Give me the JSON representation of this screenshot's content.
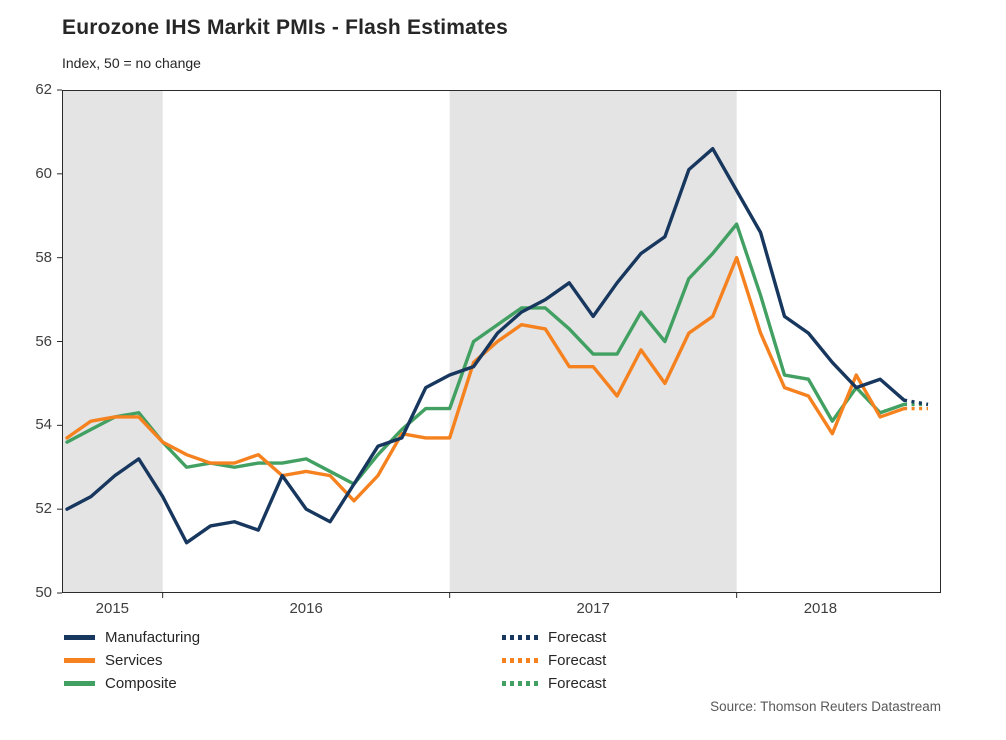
{
  "title": "Eurozone IHS Markit PMIs - Flash Estimates",
  "subtitle": "Index, 50 = no change",
  "source": "Source: Thomson Reuters Datastream",
  "colors": {
    "manufacturing": "#17375e",
    "services": "#f5811f",
    "composite": "#42a062",
    "band": "#e4e4e4",
    "frame": "#2b2b2b",
    "axis_text": "#3f3f3f",
    "title_text": "#262626",
    "source_text": "#595959"
  },
  "legend": {
    "series_labels": [
      "Manufacturing",
      "Services",
      "Composite"
    ],
    "forecast_labels": [
      "Forecast",
      "Forecast",
      "Forecast"
    ]
  },
  "chart_data": {
    "type": "line",
    "title": "Eurozone IHS Markit PMIs - Flash Estimates",
    "subtitle": "Index, 50 = no change",
    "x_frequency": "monthly",
    "x_start_month": "2015-09",
    "x_end_month_actual": "2018-08",
    "x_tick_labels": [
      "2015",
      "2016",
      "2017",
      "2018"
    ],
    "shaded_years": [
      2015,
      2017
    ],
    "grid": false,
    "legend_position": "bottom",
    "y_ticks": [
      50,
      52,
      54,
      56,
      58,
      60,
      62
    ],
    "ylim": [
      50,
      62
    ],
    "series": [
      {
        "name": "Manufacturing",
        "color_key": "manufacturing",
        "values": [
          52.0,
          52.3,
          52.8,
          53.2,
          52.3,
          51.2,
          51.6,
          51.7,
          51.5,
          52.8,
          52.0,
          51.7,
          52.6,
          53.5,
          53.7,
          54.9,
          55.2,
          55.4,
          56.2,
          56.7,
          57.0,
          57.4,
          56.6,
          57.4,
          58.1,
          58.5,
          60.1,
          60.6,
          59.6,
          58.6,
          56.6,
          56.2,
          55.5,
          54.9,
          55.1,
          54.6
        ],
        "forecast": [
          54.5
        ]
      },
      {
        "name": "Services",
        "color_key": "services",
        "values": [
          53.7,
          54.1,
          54.2,
          54.2,
          53.6,
          53.3,
          53.1,
          53.1,
          53.3,
          52.8,
          52.9,
          52.8,
          52.2,
          52.8,
          53.8,
          53.7,
          53.7,
          55.5,
          56.0,
          56.4,
          56.3,
          55.4,
          55.4,
          54.7,
          55.8,
          55.0,
          56.2,
          56.6,
          58.0,
          56.2,
          54.9,
          54.7,
          53.8,
          55.2,
          54.2,
          54.4
        ],
        "forecast": [
          54.4
        ]
      },
      {
        "name": "Composite",
        "color_key": "composite",
        "values": [
          53.6,
          53.9,
          54.2,
          54.3,
          53.6,
          53.0,
          53.1,
          53.0,
          53.1,
          53.1,
          53.2,
          52.9,
          52.6,
          53.3,
          53.9,
          54.4,
          54.4,
          56.0,
          56.4,
          56.8,
          56.8,
          56.3,
          55.7,
          55.7,
          56.7,
          56.0,
          57.5,
          58.1,
          58.8,
          57.1,
          55.2,
          55.1,
          54.1,
          54.9,
          54.3,
          54.5
        ],
        "forecast": [
          54.5
        ]
      }
    ]
  }
}
